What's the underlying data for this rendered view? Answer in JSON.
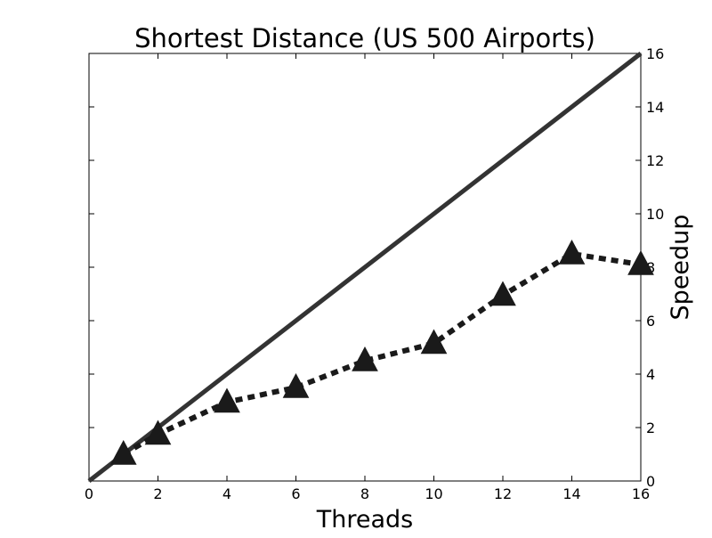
{
  "chart_data": {
    "type": "line",
    "title": "Shortest Distance (US 500 Airports)",
    "xlabel": "Threads",
    "ylabel": "Speedup",
    "xlim": [
      0,
      16
    ],
    "ylim": [
      0,
      16
    ],
    "y_axis_side": "right",
    "grid": false,
    "legend": "none",
    "x_ticks": [
      0,
      2,
      4,
      6,
      8,
      10,
      12,
      14,
      16
    ],
    "y_ticks": [
      0,
      2,
      4,
      6,
      8,
      10,
      12,
      14,
      16
    ],
    "series": [
      {
        "style": "solid",
        "marker": "none",
        "color": "#333333",
        "x": [
          0,
          16
        ],
        "y": [
          0,
          16
        ]
      },
      {
        "style": "dotted",
        "marker": "triangle",
        "color": "#1a1a1a",
        "x": [
          1,
          2,
          4,
          6,
          8,
          10,
          12,
          14,
          16
        ],
        "y": [
          1.0,
          1.75,
          2.95,
          3.5,
          4.5,
          5.15,
          6.95,
          8.5,
          8.1
        ]
      }
    ]
  }
}
